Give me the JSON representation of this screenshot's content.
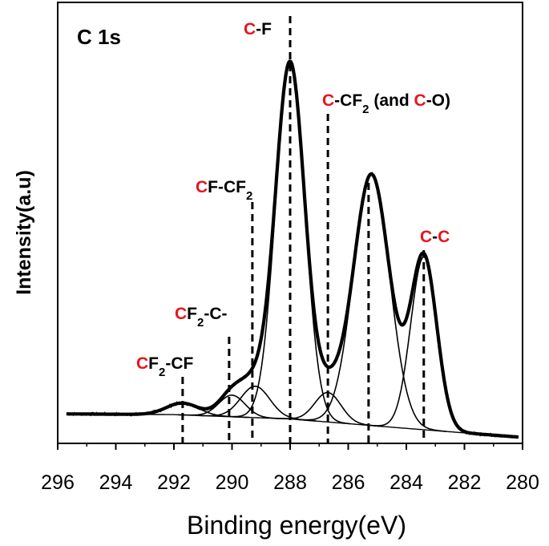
{
  "chart_data": {
    "type": "line",
    "xlabel": "Binding energy(eV)",
    "ylabel": "Intensity(a.u)",
    "xlim": [
      296,
      280
    ],
    "x_reversed": true,
    "ylim": [
      0,
      100
    ],
    "xticks": [
      "296",
      "294",
      "292",
      "290",
      "288",
      "286",
      "284",
      "282",
      "280"
    ],
    "grid": false,
    "spectrum_label": "C 1s",
    "background": [
      {
        "x": 296,
        "y": 6.5
      },
      {
        "x": 292,
        "y": 6.3
      },
      {
        "x": 288,
        "y": 5.2
      },
      {
        "x": 284,
        "y": 2.8
      },
      {
        "x": 280,
        "y": 0.5
      }
    ],
    "components": [
      {
        "center": 291.7,
        "height": 3.0,
        "sigma": 0.55
      },
      {
        "center": 290.0,
        "height": 5.5,
        "sigma": 0.45
      },
      {
        "center": 289.2,
        "height": 8.0,
        "sigma": 0.5
      },
      {
        "center": 288.0,
        "height": 90.5,
        "sigma": 0.5
      },
      {
        "center": 286.7,
        "height": 7.5,
        "sigma": 0.45
      },
      {
        "center": 285.2,
        "height": 64.0,
        "sigma": 0.62
      },
      {
        "center": 283.4,
        "height": 44.0,
        "sigma": 0.45
      }
    ],
    "peak_markers": [
      {
        "x": 291.7,
        "label_parts": [
          {
            "t": "C",
            "hl": true
          },
          {
            "t": "F",
            "hl": false
          },
          {
            "t": "2",
            "hl": false,
            "sub": true
          },
          {
            "t": "-CF",
            "hl": false
          }
        ]
      },
      {
        "x": 290.1,
        "label_parts": [
          {
            "t": "C",
            "hl": true
          },
          {
            "t": "F",
            "hl": false
          },
          {
            "t": "2",
            "hl": false,
            "sub": true
          },
          {
            "t": "-C-",
            "hl": false
          }
        ]
      },
      {
        "x": 289.3,
        "label_parts": [
          {
            "t": "C",
            "hl": true
          },
          {
            "t": "F-CF",
            "hl": false
          },
          {
            "t": "2",
            "hl": false,
            "sub": true
          }
        ]
      },
      {
        "x": 288.0,
        "label_parts": [
          {
            "t": "C",
            "hl": true
          },
          {
            "t": "-F",
            "hl": false
          }
        ]
      },
      {
        "x": 286.7,
        "label_parts": [
          {
            "t": "C",
            "hl": true
          },
          {
            "t": "-CF",
            "hl": false
          },
          {
            "t": "2",
            "hl": false,
            "sub": true
          },
          {
            "t": " (and ",
            "hl": false
          },
          {
            "t": "C",
            "hl": true
          },
          {
            "t": "-O)",
            "hl": false
          }
        ]
      },
      {
        "x": 285.3,
        "label_parts": []
      },
      {
        "x": 283.4,
        "label_parts": [
          {
            "t": "C",
            "hl": true
          },
          {
            "t": "-",
            "hl": false
          },
          {
            "t": "C",
            "hl": true
          }
        ]
      }
    ],
    "colors": {
      "line": "#000000",
      "highlight": "#e8141c"
    }
  }
}
